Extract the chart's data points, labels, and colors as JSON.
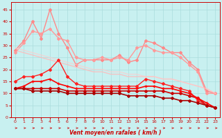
{
  "xlabel": "Vent moyen/en rafales ( km/h )",
  "background_color": "#c8f0f0",
  "grid_color": "#aadddd",
  "x": [
    0,
    1,
    2,
    3,
    4,
    5,
    6,
    7,
    8,
    9,
    10,
    11,
    12,
    13,
    14,
    15,
    16,
    17,
    18,
    19,
    20,
    21,
    22,
    23
  ],
  "lines": [
    {
      "color": "#ffbbbb",
      "alpha": 0.85,
      "lw": 1.0,
      "marker": null,
      "markersize": 0,
      "values": [
        28,
        27,
        26,
        25,
        24,
        23,
        22,
        21,
        20,
        19,
        19,
        18,
        18,
        17,
        17,
        17,
        17,
        16,
        16,
        15,
        14,
        13,
        12,
        10
      ]
    },
    {
      "color": "#ff8888",
      "alpha": 1.0,
      "lw": 1.0,
      "marker": "D",
      "markersize": 2,
      "values": [
        28,
        32,
        40,
        33,
        45,
        35,
        29,
        22,
        24,
        24,
        24,
        24,
        26,
        23,
        24,
        32,
        31,
        29,
        27,
        27,
        23,
        20,
        11,
        10
      ]
    },
    {
      "color": "#ff9999",
      "alpha": 1.0,
      "lw": 1.0,
      "marker": "D",
      "markersize": 2,
      "values": [
        27,
        31,
        36,
        35,
        37,
        33,
        32,
        25,
        24,
        24,
        25,
        24,
        25,
        24,
        29,
        30,
        28,
        27,
        27,
        25,
        22,
        19,
        10,
        10
      ]
    },
    {
      "color": "#ffcccc",
      "alpha": 0.7,
      "lw": 1.0,
      "marker": null,
      "markersize": 0,
      "values": [
        29,
        28,
        27,
        26,
        25,
        24,
        23,
        22,
        21,
        20,
        20,
        19,
        19,
        18,
        18,
        17,
        17,
        16,
        16,
        15,
        14,
        13,
        12,
        10
      ]
    },
    {
      "color": "#cc0000",
      "alpha": 1.0,
      "lw": 1.2,
      "marker": "P",
      "markersize": 2.5,
      "values": [
        12,
        12,
        12,
        12,
        12,
        12,
        11,
        11,
        11,
        11,
        11,
        11,
        11,
        11,
        11,
        11,
        11,
        11,
        10,
        10,
        9,
        8,
        5,
        4
      ]
    },
    {
      "color": "#ff2222",
      "alpha": 1.0,
      "lw": 1.0,
      "marker": "D",
      "markersize": 2,
      "values": [
        15,
        17,
        17,
        18,
        20,
        24,
        17,
        14,
        13,
        13,
        13,
        13,
        13,
        13,
        13,
        16,
        15,
        14,
        13,
        12,
        11,
        7,
        5,
        4
      ]
    },
    {
      "color": "#ff0000",
      "alpha": 1.0,
      "lw": 1.2,
      "marker": "+",
      "markersize": 3,
      "values": [
        12,
        13,
        15,
        15,
        16,
        14,
        13,
        12,
        12,
        12,
        12,
        12,
        12,
        12,
        12,
        13,
        13,
        12,
        12,
        11,
        10,
        8,
        6,
        4
      ]
    },
    {
      "color": "#aa0000",
      "alpha": 1.0,
      "lw": 1.2,
      "marker": "D",
      "markersize": 2,
      "values": [
        12,
        12,
        11,
        11,
        11,
        11,
        10,
        10,
        10,
        10,
        10,
        10,
        10,
        9,
        9,
        9,
        9,
        8,
        8,
        7,
        7,
        6,
        5,
        4
      ]
    }
  ],
  "ylim": [
    0,
    48
  ],
  "yticks": [
    0,
    5,
    10,
    15,
    20,
    25,
    30,
    35,
    40,
    45
  ],
  "xlim": [
    -0.5,
    23.5
  ]
}
